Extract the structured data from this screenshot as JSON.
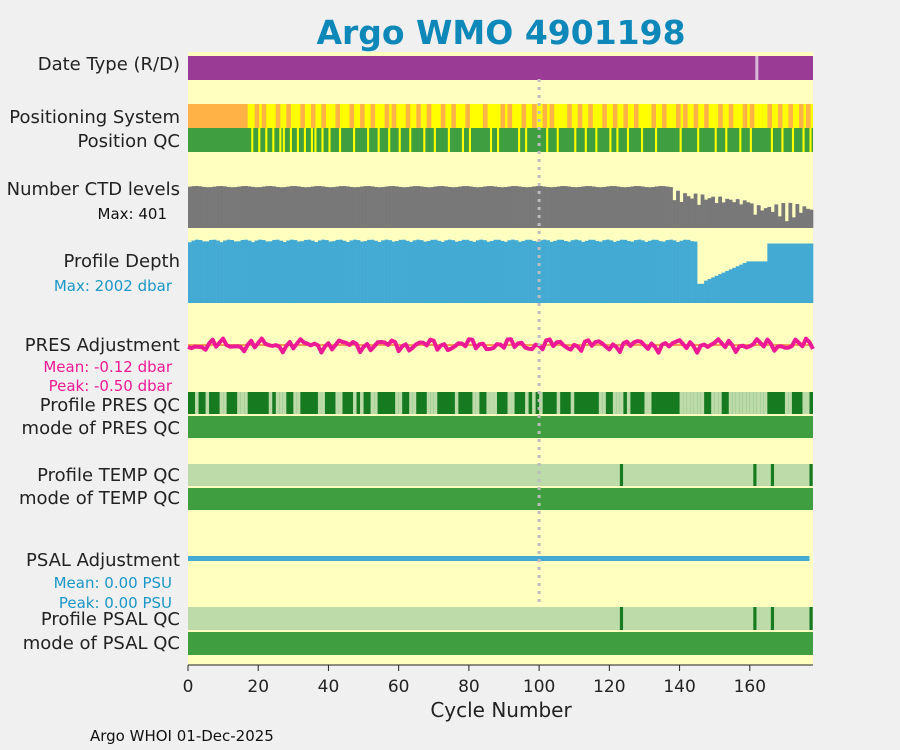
{
  "chart_data": {
    "type": "timeline",
    "title": "Argo WMO 4901198",
    "xlabel": "Cycle Number",
    "xlim": [
      0,
      178
    ],
    "xticks": [
      0,
      20,
      40,
      60,
      80,
      100,
      120,
      140,
      160
    ],
    "reference_line_cycle": 100,
    "footer": "Argo WHOI 01-Dec-2025",
    "colors": {
      "title": "#0e87b9",
      "background": "#ffffc0",
      "date_type": "#9a3c96",
      "pos_orange": "#ffb347",
      "pos_yellow": "#ffff00",
      "qc_good": "#3f9e3f",
      "qc_dark": "#157a20",
      "qc_light": "#bcdba8",
      "ctd": "#787878",
      "depth": "#43abd3",
      "pres": "#ee1a95",
      "psal": "#43abd3"
    },
    "rows": {
      "date_type": {
        "label": "Date Type (R/D)",
        "marker_cycles": [
          162
        ]
      },
      "positioning_system": {
        "label": "Positioning System",
        "first_orange_until": 17,
        "orange_cycles": [
          19,
          21,
          25,
          28,
          32,
          35,
          38,
          42,
          46,
          49,
          52,
          56,
          58,
          62,
          65,
          68,
          72,
          75,
          79,
          84,
          89,
          91,
          95,
          98,
          101,
          103,
          108,
          111,
          114,
          118,
          121,
          124,
          127,
          132,
          135,
          139,
          141,
          144,
          147,
          151,
          154,
          158,
          160,
          165,
          168,
          171,
          174,
          176
        ]
      },
      "position_qc": {
        "label": "Position QC",
        "bad_cycles": [
          18,
          20,
          22,
          24,
          26,
          27,
          29,
          31,
          33,
          35,
          36,
          38,
          40,
          43,
          47,
          51,
          54,
          57,
          60,
          63,
          67,
          70,
          74,
          78,
          80,
          86,
          88,
          94,
          96,
          102,
          105,
          110,
          113,
          116,
          120,
          122,
          125,
          129,
          133,
          140,
          145,
          150,
          153,
          157,
          160,
          166,
          169,
          172,
          175,
          177
        ]
      },
      "ctd_levels": {
        "label": "Number CTD levels",
        "max_label": "Max: 401",
        "max": 401
      },
      "profile_depth": {
        "label": "Profile Depth",
        "max_label": "Max: 2002 dbar",
        "max": 2002
      },
      "pres_adjustment": {
        "label": "PRES Adjustment",
        "mean_label": "Mean: -0.12 dbar",
        "peak_label": "Peak: -0.50 dbar",
        "mean": -0.12,
        "peak": -0.5
      },
      "profile_pres_qc": {
        "label": "Profile PRES QC",
        "light_cycles": [
          2,
          5,
          9,
          10,
          14,
          15,
          16,
          23,
          25,
          26,
          27,
          30,
          31,
          37,
          38,
          42,
          43,
          47,
          49,
          52,
          53,
          59,
          60,
          63,
          64,
          68,
          69,
          70,
          76,
          81,
          82,
          85,
          86,
          87,
          91,
          92,
          96,
          98,
          100,
          105,
          109,
          117,
          118,
          121,
          122,
          123,
          125,
          130,
          131,
          140,
          141,
          142,
          143,
          144,
          145,
          146,
          149,
          150,
          151,
          154,
          155,
          156,
          157,
          158,
          159,
          160,
          161,
          162,
          163,
          164,
          170,
          171,
          175,
          176
        ]
      },
      "mode_pres_qc": {
        "label": "mode of PRES QC"
      },
      "profile_temp_qc": {
        "label": "Profile TEMP QC",
        "dark_cycles": [
          123,
          161,
          166,
          177
        ]
      },
      "mode_temp_qc": {
        "label": "mode of TEMP QC"
      },
      "psal_adjustment": {
        "label": "PSAL Adjustment",
        "mean_label": "Mean: 0.00 PSU",
        "peak_label": "Peak: 0.00 PSU",
        "mean": 0.0,
        "peak": 0.0
      },
      "profile_psal_qc": {
        "label": "Profile PSAL QC",
        "dark_cycles": [
          123,
          161,
          166,
          177
        ]
      },
      "mode_psal_qc": {
        "label": "mode of PSAL QC"
      }
    }
  }
}
